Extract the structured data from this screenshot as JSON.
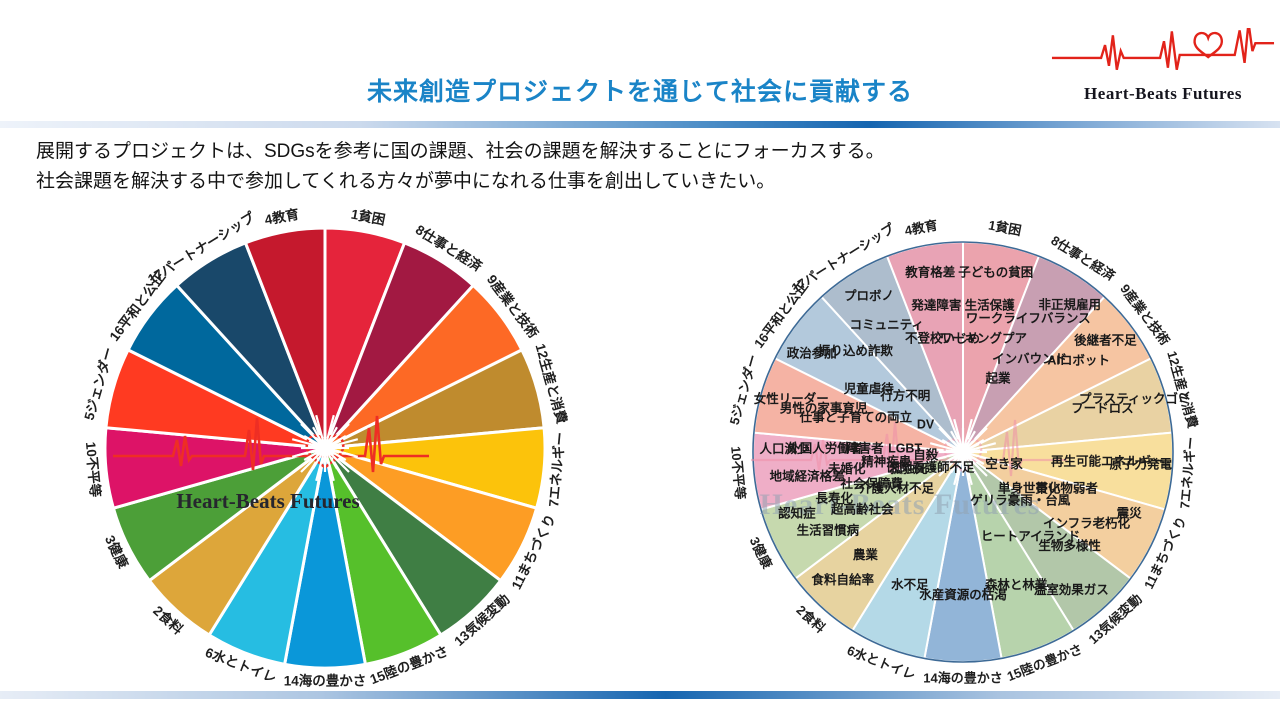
{
  "slide": {
    "title": "未来創造プロジェクトを通じて社会に貢献する",
    "body_lines": [
      "展開するプロジェクトは、SDGsを参考に国の課題、社会の課題を解決することにフォーカスする。",
      "社会課題を解決する中で参加してくれる方々が夢中になれる仕事を創出していきたい。"
    ]
  },
  "logo": {
    "text": "Heart-Beats Futures"
  },
  "colors": {
    "title": "#1a84c7",
    "bar_dark": "#1565b0",
    "logo_red": "#e2231a",
    "ekg_left": "#ee2e24",
    "ekg_right": "#ef8fa8",
    "rim_right": "#3d6a96",
    "watermark_right": "#93a3b3",
    "center_text_left": "#26262e"
  },
  "chart_data": [
    {
      "id": "wheel-left",
      "type": "pie",
      "equal_segments": true,
      "categories": [
        "1貧困",
        "8仕事と経済",
        "9産業と技術",
        "12生産と消費",
        "7エネルギー",
        "11まちづくり",
        "13気候変動",
        "15陸の豊かさ",
        "14海の豊かさ",
        "6水とトイレ",
        "2食料",
        "3健康",
        "10不平等",
        "5ジェンダー",
        "16平和と公正",
        "17パートナーシップ",
        "4教育"
      ],
      "colors": [
        "#e5243b",
        "#a21942",
        "#fd6925",
        "#bf8b2e",
        "#fcc30b",
        "#fd9d24",
        "#3f7e44",
        "#56c02b",
        "#0a97d9",
        "#26bde2",
        "#dda63a",
        "#4c9f38",
        "#dd1367",
        "#ff3a21",
        "#00689d",
        "#19486a",
        "#c5192d"
      ],
      "center_text": "Heart-Beats Futures"
    },
    {
      "id": "wheel-right",
      "type": "pie",
      "equal_segments": true,
      "categories": [
        "1貧困",
        "8仕事と経済",
        "9産業と技術",
        "12生産と消費",
        "7エネルギー",
        "11まちづくり",
        "13気候変動",
        "15陸の豊かさ",
        "14海の豊かさ",
        "6水とトイレ",
        "2食料",
        "3健康",
        "10不平等",
        "5ジェンダー",
        "16平和と公正",
        "17パートナーシップ",
        "4教育"
      ],
      "colors": [
        "#eba3ad",
        "#c89fb2",
        "#f6c5a2",
        "#e9d2a3",
        "#f8df9d",
        "#f3cf9f",
        "#b2c7a9",
        "#b7d3ac",
        "#92b5d8",
        "#b4d9e7",
        "#e7d3a0",
        "#c6d9ae",
        "#efaec7",
        "#f5b3a4",
        "#b3c9dc",
        "#adbdcd",
        "#e8a3b5"
      ],
      "watermark": "Heart-Beats Futures",
      "issues": [
        [
          "ワーキングプア",
          "生活保護",
          "子どもの貧困"
        ],
        [
          "起業",
          "インバウンド",
          "ワークライフバランス",
          "非正規雇用"
        ],
        [
          "AIロボット",
          "後継者不足"
        ],
        [
          "フードロス",
          "プラスティックゴミ"
        ],
        [
          "再生可能エネルギー",
          "原子力発電"
        ],
        [
          "空き家",
          "単身世帯化",
          "買い物弱者",
          "インフラ老朽化",
          "震災"
        ],
        [
          "ゲリラ豪雨・台風",
          "ヒートアイランド",
          "生物多様性",
          "温室効果ガス"
        ],
        [
          "森林と林業"
        ],
        [
          "水産資源の枯渇"
        ],
        [
          "水不足"
        ],
        [
          "農業",
          "食料自給率"
        ],
        [
          "医師看護師不足",
          "孤独死",
          "介護人材不足",
          "社会保障費",
          "超高齢社会",
          "長寿化",
          "生活習慣病",
          "認知症"
        ],
        [
          "自殺",
          "LGBT",
          "精神疾患",
          "障害者",
          "未婚化",
          "外国人労働者",
          "地域経済格差",
          "人口減少"
        ],
        [
          "仕事と子育ての両立",
          "男性の家事育児",
          "女性リーダー"
        ],
        [
          "DV",
          "行方不明",
          "児童虐待",
          "振り込め詐欺",
          "政治参加"
        ],
        [
          "コミュニティ",
          "プロボノ"
        ],
        [
          "不登校いじめ",
          "発達障害",
          "教育格差"
        ]
      ]
    }
  ]
}
